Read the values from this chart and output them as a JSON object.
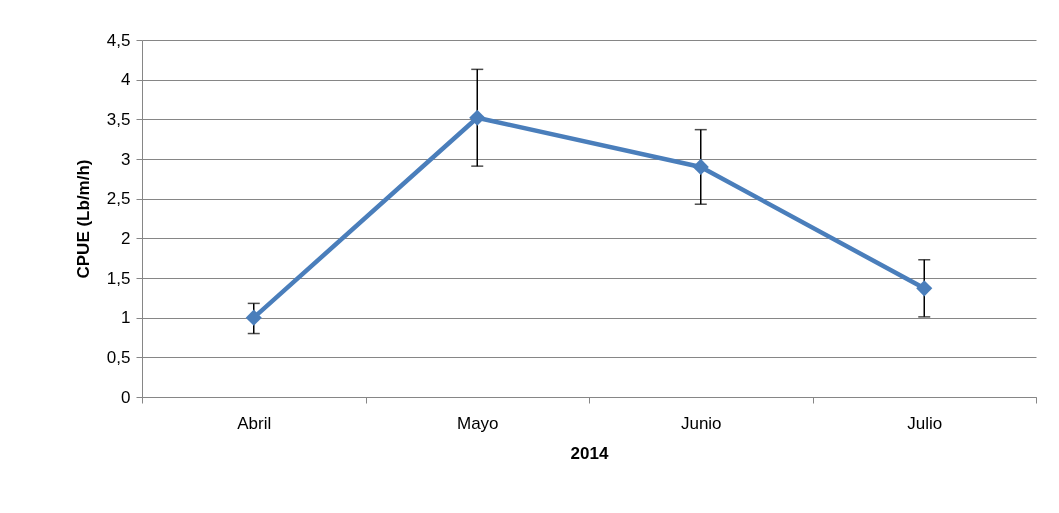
{
  "chart_data": {
    "type": "line",
    "xlabel": "2014",
    "ylabel": "CPUE (Lb/m/h)",
    "categories": [
      "Abril",
      "Mayo",
      "Junio",
      "Julio"
    ],
    "series": [
      {
        "color": "#4a7ebb",
        "values": [
          1.0,
          3.52,
          2.9,
          1.37
        ],
        "errors": [
          [
            0.8,
            1.18
          ],
          [
            2.91,
            4.13
          ],
          [
            2.43,
            3.37
          ],
          [
            1.01,
            1.73
          ]
        ]
      }
    ],
    "ylim": [
      0,
      4.5
    ],
    "yticks": [
      0,
      {
        "value": 0.5,
        "label": "0,5"
      },
      1,
      {
        "value": 1.5,
        "label": "1,5"
      },
      2,
      {
        "value": 2.5,
        "label": "2,5"
      },
      3,
      {
        "value": 3.5,
        "label": "3,5"
      },
      4,
      {
        "value": 4.5,
        "label": "4,5"
      }
    ],
    "grid": "y",
    "marker": "diamond",
    "line_style": "solid"
  }
}
